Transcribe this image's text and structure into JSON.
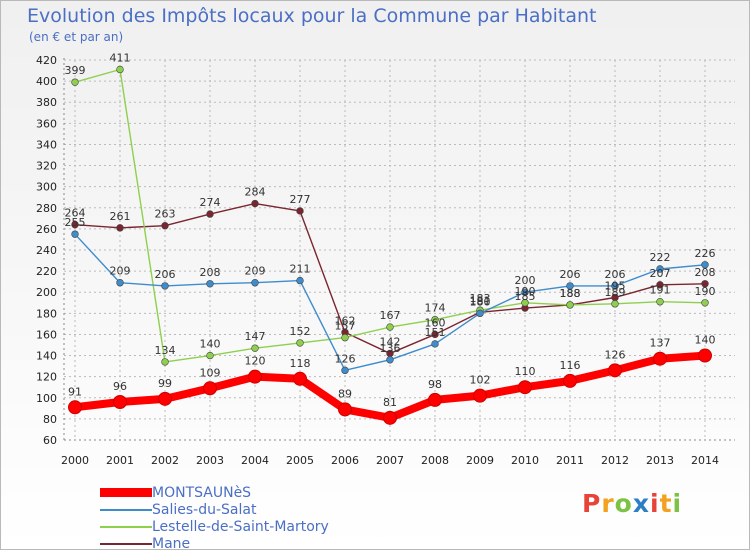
{
  "title": "Evolution des Impôts locaux pour la Commune par Habitant",
  "subtitle": "(en € et par an)",
  "brand": "Proxiti",
  "colors": {
    "title": "#4b6fc4",
    "grid": "#bbbbbb",
    "brand": [
      "#e8433a",
      "#f3a21f",
      "#7cc243",
      "#2d7fc4",
      "#e8433a",
      "#f3a21f",
      "#7cc243"
    ]
  },
  "chart_data": {
    "type": "line",
    "title": "Evolution des Impôts locaux pour la Commune par Habitant",
    "subtitle": "(en € et par an)",
    "categories": [
      "2000",
      "2001",
      "2002",
      "2003",
      "2004",
      "2005",
      "2006",
      "2007",
      "2008",
      "2009",
      "2010",
      "2011",
      "2012",
      "2013",
      "2014"
    ],
    "ylim": [
      60,
      420
    ],
    "yticks": [
      60,
      80,
      100,
      120,
      140,
      160,
      180,
      200,
      220,
      240,
      260,
      280,
      300,
      320,
      340,
      360,
      380,
      400,
      420
    ],
    "grid": true,
    "legend_position": "bottom-left",
    "series": [
      {
        "name": "MONTSAUNèS",
        "color": "#ff0000",
        "values": [
          91,
          96,
          99,
          109,
          120,
          118,
          89,
          81,
          98,
          102,
          110,
          116,
          126,
          137,
          140
        ],
        "labels": [
          "91",
          "96",
          "99",
          "109",
          "120",
          "118",
          "89",
          "81",
          "98",
          "102",
          "110",
          "116",
          "126",
          "137",
          "140"
        ]
      },
      {
        "name": "Salies-du-Salat",
        "color": "#3f8ccc",
        "values": [
          255,
          209,
          206,
          208,
          209,
          211,
          126,
          136,
          151,
          180,
          200,
          206,
          206,
          222,
          226
        ],
        "labels": [
          "255",
          "209",
          "206",
          "208",
          "209",
          "211",
          "126",
          "136",
          "151",
          "180",
          "200",
          "206",
          "206",
          "222",
          "226"
        ]
      },
      {
        "name": "Lestelle-de-Saint-Martory",
        "color": "#8ed04e",
        "values": [
          399,
          411,
          134,
          140,
          147,
          152,
          157,
          167,
          174,
          183,
          190,
          188,
          189,
          191,
          190
        ],
        "labels": [
          "399",
          "411",
          "134",
          "140",
          "147",
          "152",
          "157",
          "167",
          "174",
          "183",
          "190",
          "188",
          "189",
          "191",
          "190"
        ]
      },
      {
        "name": "Mane",
        "color": "#7a2630",
        "values": [
          264,
          261,
          263,
          274,
          284,
          277,
          162,
          142,
          160,
          181,
          185,
          188,
          195,
          207,
          208
        ],
        "labels": [
          "264",
          "261",
          "263",
          "274",
          "284",
          "277",
          "162",
          "142",
          "160",
          "181",
          "185",
          "188",
          "195",
          "207",
          "208"
        ]
      }
    ]
  }
}
